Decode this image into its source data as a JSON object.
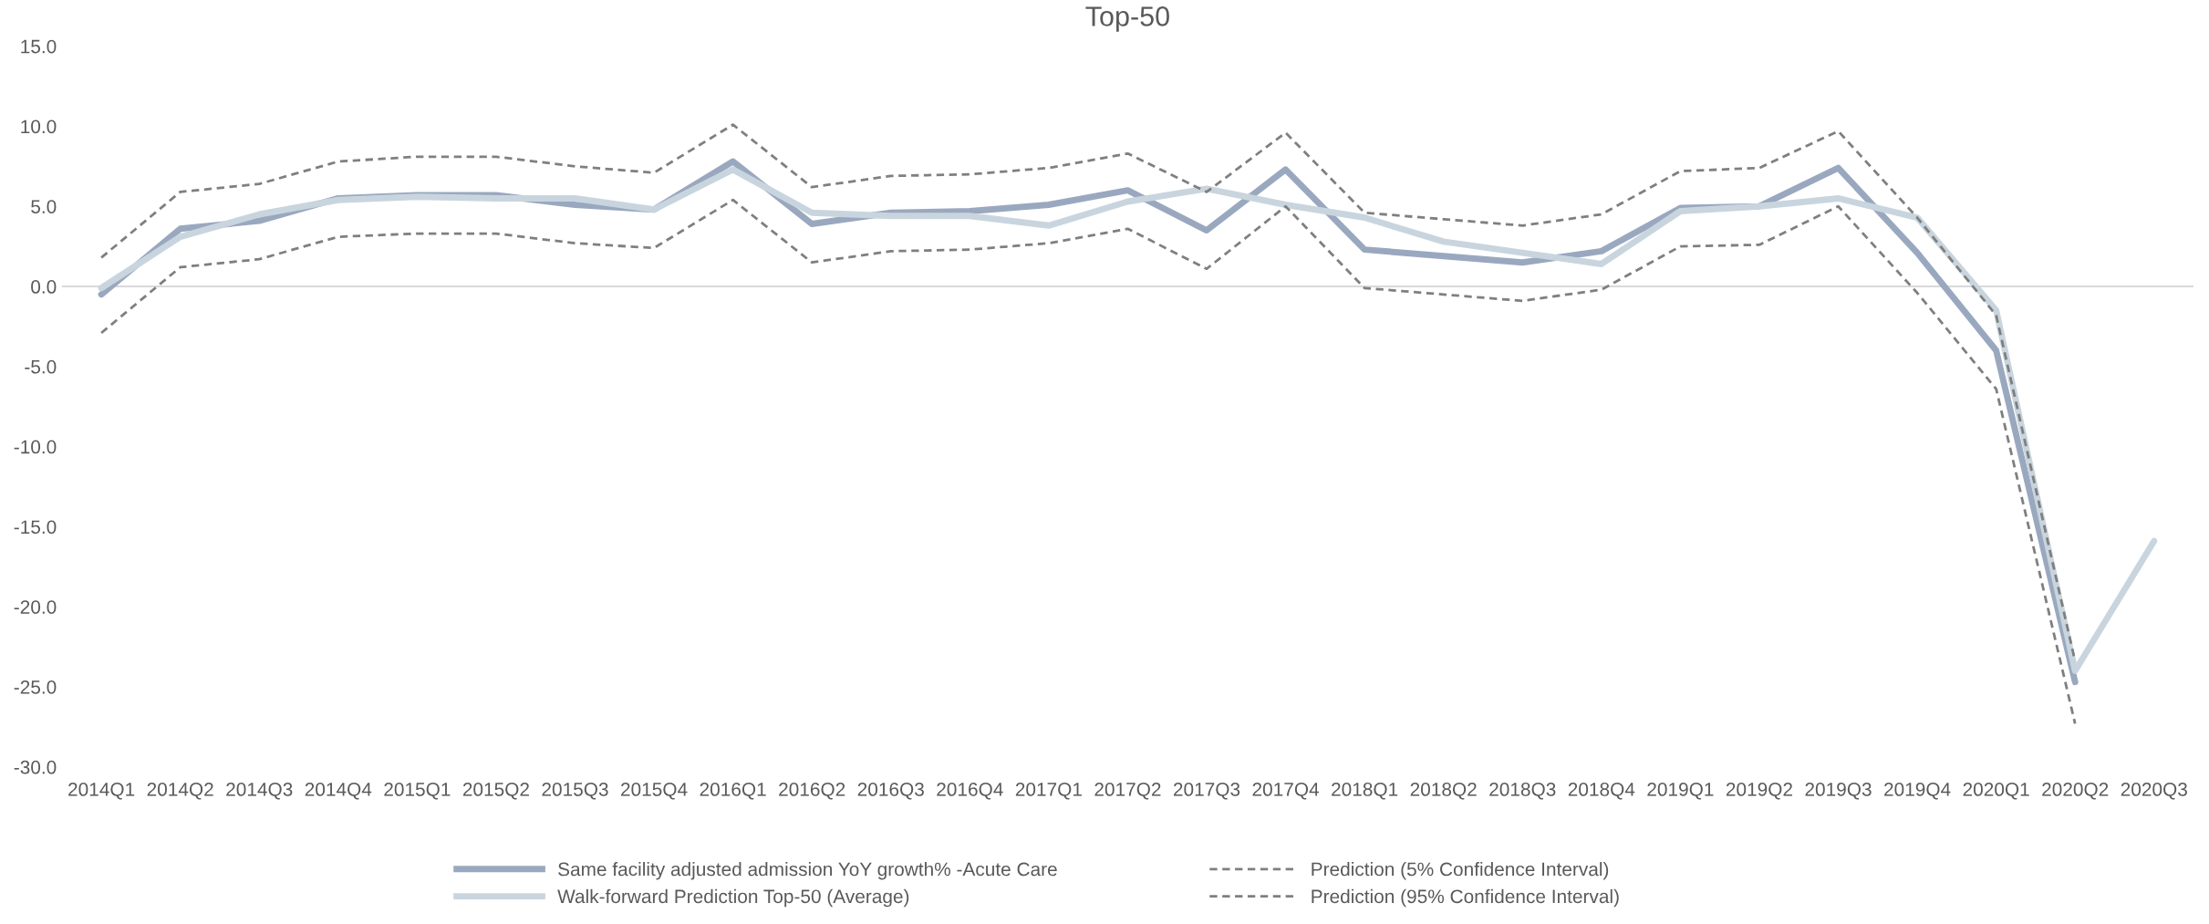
{
  "chart_data": {
    "type": "line",
    "title": "Top-50",
    "categories": [
      "2014Q1",
      "2014Q2",
      "2014Q3",
      "2014Q4",
      "2015Q1",
      "2015Q2",
      "2015Q3",
      "2015Q4",
      "2016Q1",
      "2016Q2",
      "2016Q3",
      "2016Q4",
      "2017Q1",
      "2017Q2",
      "2017Q3",
      "2017Q4",
      "2018Q1",
      "2018Q2",
      "2018Q3",
      "2018Q4",
      "2019Q1",
      "2019Q2",
      "2019Q3",
      "2019Q4",
      "2020Q1",
      "2020Q2",
      "2020Q3"
    ],
    "series": [
      {
        "name": "Same facility adjusted admission YoY growth% -Acute Care",
        "color": "#9aa8bf",
        "line_style": "solid",
        "values": [
          -0.5,
          3.6,
          4.1,
          5.5,
          5.7,
          5.7,
          5.1,
          4.8,
          7.8,
          3.9,
          4.6,
          4.7,
          5.1,
          6.0,
          3.5,
          7.3,
          2.3,
          1.9,
          1.5,
          2.2,
          4.9,
          5.0,
          7.4,
          2.1,
          -4.0,
          -24.7,
          null
        ]
      },
      {
        "name": "Walk-forward Prediction Top-50 (Average)",
        "color": "#c9d5de",
        "line_style": "solid",
        "values": [
          -0.1,
          3.1,
          4.5,
          5.4,
          5.6,
          5.5,
          5.5,
          4.8,
          7.3,
          4.6,
          4.4,
          4.4,
          3.8,
          5.3,
          6.1,
          5.1,
          4.3,
          2.8,
          2.1,
          1.4,
          4.7,
          5.0,
          5.5,
          4.3,
          -1.5,
          -24.0,
          -15.9
        ]
      },
      {
        "name": "Prediction (5% Confidence Interval)",
        "color": "#7f7f7f",
        "line_style": "dashed",
        "values": [
          -2.9,
          1.2,
          1.7,
          3.1,
          3.3,
          3.3,
          2.7,
          2.4,
          5.4,
          1.5,
          2.2,
          2.3,
          2.7,
          3.6,
          1.1,
          5.0,
          -0.1,
          -0.5,
          -0.9,
          -0.2,
          2.5,
          2.6,
          5.0,
          -0.4,
          -6.4,
          -27.3,
          null
        ]
      },
      {
        "name": "Prediction (95% Confidence Interval)",
        "color": "#7f7f7f",
        "line_style": "dashed",
        "values": [
          1.8,
          5.9,
          6.4,
          7.8,
          8.1,
          8.1,
          7.5,
          7.1,
          10.1,
          6.2,
          6.9,
          7.0,
          7.4,
          8.3,
          5.9,
          9.6,
          4.6,
          4.2,
          3.8,
          4.5,
          7.2,
          7.4,
          9.7,
          4.3,
          -1.8,
          -23.4,
          null
        ]
      }
    ],
    "ylim": [
      -30,
      15
    ],
    "yticks": [
      {
        "value": -30,
        "label": "-30.0"
      },
      {
        "value": -25,
        "label": "-25.0"
      },
      {
        "value": -20,
        "label": "-20.0"
      },
      {
        "value": -15,
        "label": "-15.0"
      },
      {
        "value": -10,
        "label": "-10.0"
      },
      {
        "value": -5,
        "label": "-5.0"
      },
      {
        "value": 0,
        "label": "0.0"
      },
      {
        "value": 5,
        "label": "5.0"
      },
      {
        "value": 10,
        "label": "10.0"
      },
      {
        "value": 15,
        "label": "15.0"
      }
    ],
    "ref_lines": [
      {
        "axis": "y",
        "value": 0,
        "label": null,
        "color": "#d9d9d9",
        "line_style": "solid"
      }
    ],
    "grid": false,
    "legend": "bottom",
    "marker": "none"
  }
}
